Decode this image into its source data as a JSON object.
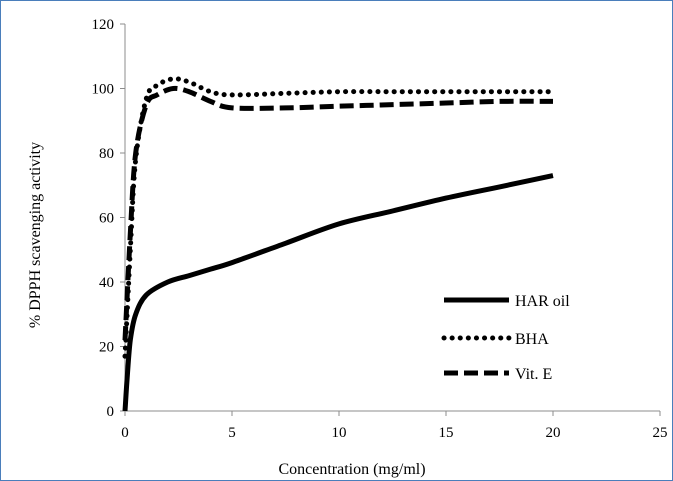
{
  "chart_data": {
    "type": "line",
    "xlabel": "Concentration (mg/ml)",
    "ylabel": "% DPPH scavenging activity",
    "xlim": [
      0,
      25
    ],
    "ylim": [
      0,
      120
    ],
    "x_ticks": [
      0,
      5,
      10,
      15,
      20,
      25
    ],
    "y_ticks": [
      0,
      20,
      40,
      60,
      80,
      100,
      120
    ],
    "grid": false,
    "legend_position": "lower-right",
    "series": [
      {
        "name": "HAR oil",
        "style": "solid",
        "color": "#000000",
        "points": [
          [
            0,
            0
          ],
          [
            0.1,
            10
          ],
          [
            0.25,
            22
          ],
          [
            0.5,
            30
          ],
          [
            1,
            36
          ],
          [
            2,
            40
          ],
          [
            3,
            42
          ],
          [
            4,
            44
          ],
          [
            5,
            46
          ],
          [
            7.5,
            52
          ],
          [
            10,
            58
          ],
          [
            12.5,
            62
          ],
          [
            15,
            66
          ],
          [
            17.5,
            69.5
          ],
          [
            20,
            73
          ]
        ]
      },
      {
        "name": "BHA",
        "style": "dotted",
        "color": "#000000",
        "points": [
          [
            0,
            17
          ],
          [
            0.25,
            50
          ],
          [
            0.5,
            78
          ],
          [
            1,
            97
          ],
          [
            1.5,
            101
          ],
          [
            2.25,
            103
          ],
          [
            3,
            102
          ],
          [
            4,
            99
          ],
          [
            5,
            98
          ],
          [
            7.5,
            98.5
          ],
          [
            10,
            99
          ],
          [
            12.5,
            99
          ],
          [
            15,
            99
          ],
          [
            17.5,
            99
          ],
          [
            20,
            99
          ]
        ]
      },
      {
        "name": "Vit. E",
        "style": "dashed",
        "color": "#000000",
        "points": [
          [
            0,
            22
          ],
          [
            0.25,
            55
          ],
          [
            0.5,
            80
          ],
          [
            1,
            95
          ],
          [
            1.5,
            98
          ],
          [
            2.25,
            100
          ],
          [
            3,
            99
          ],
          [
            4,
            96
          ],
          [
            5,
            94
          ],
          [
            7.5,
            94
          ],
          [
            10,
            94.5
          ],
          [
            12.5,
            95
          ],
          [
            15,
            95.5
          ],
          [
            17.5,
            96
          ],
          [
            20,
            96
          ]
        ]
      }
    ]
  }
}
